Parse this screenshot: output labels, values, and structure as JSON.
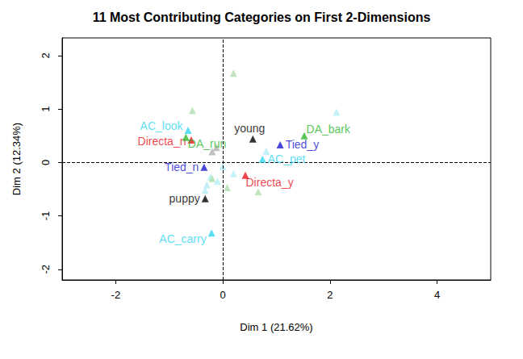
{
  "chart_data": {
    "type": "scatter",
    "title": "11 Most Contributing Categories on First 2-Dimensions",
    "x_label": "Dim 1 (21.62%)",
    "y_label": "Dim 2 (12.34%)",
    "marker": "triangle",
    "xlim": [
      -3,
      5
    ],
    "xticks": [
      -2,
      0,
      2,
      4
    ],
    "ylim": [
      -2.2,
      2.33
    ],
    "yticks": [
      -2,
      -1,
      0,
      1,
      2
    ],
    "reference_lines": {
      "x": 0,
      "y": 0
    },
    "grid": false,
    "series": [
      {
        "color": "#b4eef6",
        "x": [
          2.12,
          0.81,
          -0.23,
          -0.33,
          -0.3,
          0.2,
          0.0,
          -0.1
        ],
        "y": [
          0.94,
          0.21,
          -0.27,
          -0.52,
          -0.42,
          -0.21,
          -0.08,
          -0.35
        ],
        "labels": [
          null,
          null,
          null,
          null,
          null,
          null,
          null,
          null
        ]
      },
      {
        "color": "#b2deb2",
        "x": [
          0.2,
          -0.57,
          0.66,
          0.08,
          -0.2
        ],
        "y": [
          1.67,
          0.97,
          -0.55,
          -0.47,
          -0.3
        ],
        "labels": [
          null,
          null,
          null,
          null,
          null
        ]
      },
      {
        "color": "#b0b0b0",
        "x": [
          -0.2,
          -0.12
        ],
        "y": [
          0.2,
          0.28
        ],
        "labels": [
          null,
          null
        ]
      },
      {
        "color": "#33d6f0",
        "x": [
          -0.65,
          0.74,
          -0.21
        ],
        "y": [
          0.6,
          0.06,
          -1.32
        ],
        "labels": [
          "AC_look",
          "AC_pet",
          "AC_carry"
        ]
      },
      {
        "color": "#e8141c",
        "x": [
          -0.59,
          0.42
        ],
        "y": [
          0.42,
          -0.24
        ],
        "labels": [
          "Directa_n",
          "Directa_y"
        ]
      },
      {
        "color": "#2db82d",
        "x": [
          -0.69,
          1.52
        ],
        "y": [
          0.47,
          0.5
        ],
        "labels": [
          "DA_run",
          "DA_bark"
        ]
      },
      {
        "color": "#1a1acc",
        "x": [
          1.07,
          -0.35
        ],
        "y": [
          0.33,
          -0.09
        ],
        "labels": [
          "Tied_y",
          "Tied_n"
        ]
      },
      {
        "color": "#000000",
        "x": [
          0.56,
          -0.33
        ],
        "y": [
          0.44,
          -0.68
        ],
        "labels": [
          "young",
          "puppy"
        ]
      }
    ]
  }
}
